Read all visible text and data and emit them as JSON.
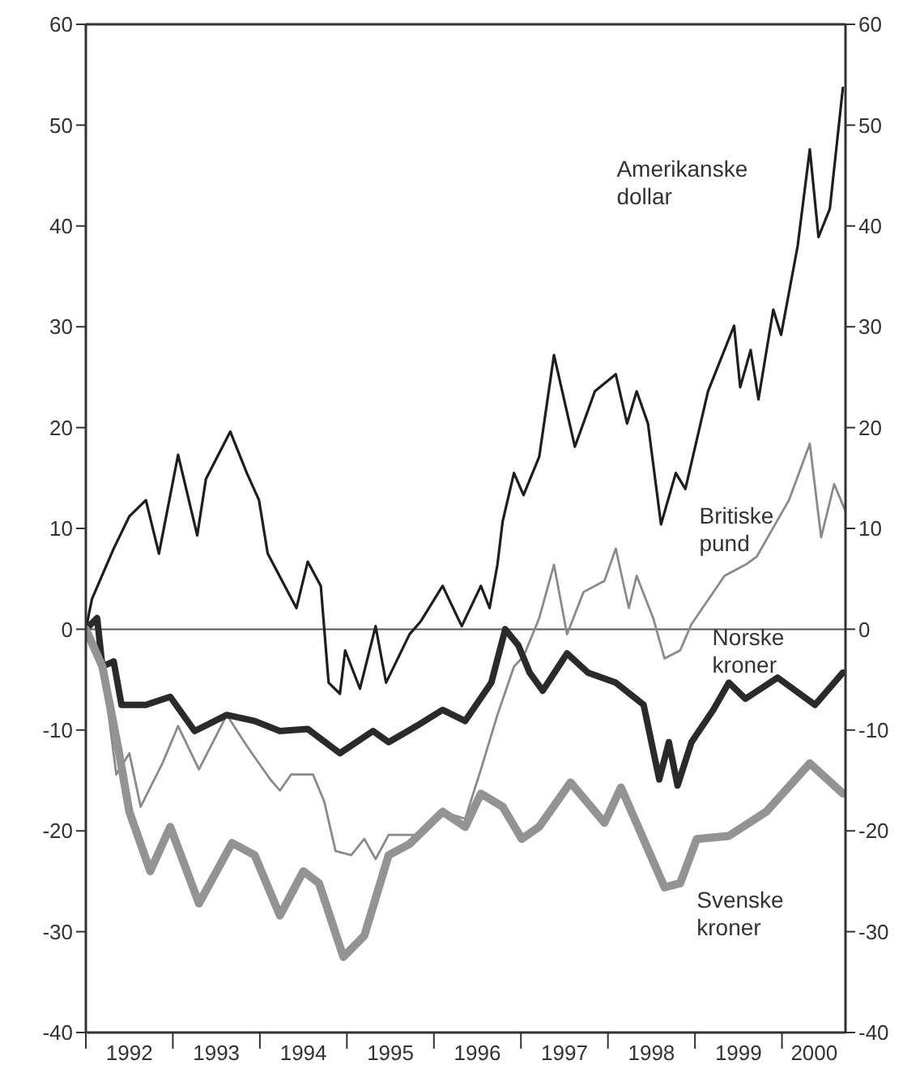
{
  "chart_data": {
    "type": "line",
    "xlim": [
      1992,
      2000.73
    ],
    "ylim": [
      -40,
      60
    ],
    "y2lim": [
      -40,
      60
    ],
    "xticks": [
      {
        "value": 1992,
        "label": null
      },
      {
        "value": 1992.5,
        "label": "1992"
      },
      {
        "value": 1993,
        "label": null
      },
      {
        "value": 1993.5,
        "label": "1993"
      },
      {
        "value": 1994,
        "label": null
      },
      {
        "value": 1994.5,
        "label": "1994"
      },
      {
        "value": 1995,
        "label": null
      },
      {
        "value": 1995.5,
        "label": "1995"
      },
      {
        "value": 1996,
        "label": null
      },
      {
        "value": 1996.5,
        "label": "1996"
      },
      {
        "value": 1997,
        "label": null
      },
      {
        "value": 1997.5,
        "label": "1997"
      },
      {
        "value": 1998,
        "label": null
      },
      {
        "value": 1998.5,
        "label": "1998"
      },
      {
        "value": 1999,
        "label": null
      },
      {
        "value": 1999.5,
        "label": "1999"
      },
      {
        "value": 2000,
        "label": null
      },
      {
        "value": 2000.37,
        "label": "2000"
      }
    ],
    "yticks": [
      -40,
      -30,
      -20,
      -10,
      0,
      10,
      20,
      30,
      40,
      50,
      60
    ],
    "y2ticks": [
      -40,
      -30,
      -20,
      -10,
      0,
      10,
      20,
      30,
      40,
      50,
      60
    ],
    "ref_lines": [
      {
        "axis": "y",
        "value": 0,
        "color": "#555555"
      }
    ],
    "grid": false,
    "legend": false,
    "series": [
      {
        "name": "Amerikanske dollar",
        "color": "#1e1e1e",
        "x": [
          1992,
          1992.07,
          1992.32,
          1992.5,
          1992.69,
          1992.84,
          1993.06,
          1993.28,
          1993.38,
          1993.66,
          1993.85,
          1993.99,
          1994.09,
          1994.42,
          1994.55,
          1994.7,
          1994.79,
          1994.92,
          1994.98,
          1995.15,
          1995.33,
          1995.45,
          1995.72,
          1995.85,
          1996.1,
          1996.32,
          1996.54,
          1996.64,
          1996.73,
          1996.79,
          1996.92,
          1997.03,
          1997.21,
          1997.38,
          1997.62,
          1997.85,
          1998.09,
          1998.22,
          1998.33,
          1998.46,
          1998.61,
          1998.78,
          1998.89,
          1999.15,
          1999.45,
          1999.52,
          1999.64,
          1999.73,
          1999.9,
          1999.99,
          2000.18,
          2000.32,
          2000.42,
          2000.55,
          2000.7
        ],
        "values": [
          0,
          3,
          8,
          11.2,
          12.8,
          7.5,
          17.3,
          9.3,
          14.9,
          19.6,
          15.5,
          12.8,
          7.5,
          2.1,
          6.7,
          4.3,
          -5.3,
          -6.4,
          -2.1,
          -5.9,
          0.3,
          -5.3,
          -0.5,
          0.8,
          4.3,
          0.3,
          4.3,
          2.1,
          6.4,
          10.7,
          15.5,
          13.3,
          17.1,
          27.2,
          18.1,
          23.6,
          25.3,
          20.4,
          23.6,
          20.4,
          10.4,
          15.5,
          13.9,
          23.6,
          30.1,
          24,
          27.7,
          22.8,
          31.7,
          29.2,
          38,
          47.6,
          38.9,
          41.7,
          53.7
        ]
      },
      {
        "name": "Britiske pund",
        "color": "#8a8a8a",
        "x": [
          1992,
          1992.19,
          1992.35,
          1992.5,
          1992.63,
          1992.88,
          1993.06,
          1993.3,
          1993.62,
          1993.86,
          1994.12,
          1994.23,
          1994.36,
          1994.61,
          1994.74,
          1994.87,
          1995.05,
          1995.2,
          1995.33,
          1995.48,
          1995.8,
          1996.1,
          1996.36,
          1996.54,
          1996.73,
          1996.92,
          1997.03,
          1997.21,
          1997.38,
          1997.53,
          1997.72,
          1997.96,
          1998.09,
          1998.24,
          1998.33,
          1998.52,
          1998.65,
          1998.83,
          1998.96,
          1999.34,
          1999.58,
          1999.71,
          2000.08,
          2000.32,
          2000.45,
          2000.6,
          2000.73
        ],
        "values": [
          0,
          -3.7,
          -14.4,
          -12.3,
          -17.6,
          -13.3,
          -9.6,
          -13.9,
          -8.5,
          -11.7,
          -14.9,
          -16,
          -14.4,
          -14.4,
          -17.1,
          -22,
          -22.4,
          -20.8,
          -22.8,
          -20.4,
          -20.4,
          -18.1,
          -18.8,
          -13.9,
          -8.5,
          -3.7,
          -2.7,
          1.1,
          6.4,
          -0.5,
          3.7,
          4.8,
          8,
          2.1,
          5.3,
          1.1,
          -2.9,
          -2.1,
          0.5,
          5.3,
          6.4,
          7.2,
          12.8,
          18.4,
          9.1,
          14.4,
          11.7
        ]
      },
      {
        "name": "Norske kroner",
        "color": "#2a2a2a",
        "x": [
          1992,
          1992.13,
          1992.19,
          1992.32,
          1992.41,
          1992.69,
          1992.97,
          1993.25,
          1993.62,
          1993.94,
          1994.23,
          1994.55,
          1994.92,
          1995.3,
          1995.48,
          1995.8,
          1996.1,
          1996.36,
          1996.66,
          1996.82,
          1996.97,
          1997.1,
          1997.25,
          1997.53,
          1997.77,
          1998.09,
          1998.41,
          1998.59,
          1998.7,
          1998.8,
          1998.96,
          1999.21,
          1999.39,
          1999.58,
          1999.95,
          2000.38,
          2000.7
        ],
        "values": [
          0,
          1.1,
          -3.7,
          -3.2,
          -7.5,
          -7.5,
          -6.7,
          -10.1,
          -8.5,
          -9.1,
          -10.1,
          -9.9,
          -12.3,
          -10.1,
          -11.2,
          -9.6,
          -8,
          -9.1,
          -5.3,
          0,
          -1.6,
          -4.3,
          -6.1,
          -2.4,
          -4.3,
          -5.3,
          -7.5,
          -14.9,
          -11.2,
          -15.5,
          -11.2,
          -8,
          -5.3,
          -6.9,
          -4.8,
          -7.5,
          -4.3
        ]
      },
      {
        "name": "Svenske kroner",
        "color": "#939393",
        "x": [
          1992,
          1992.19,
          1992.37,
          1992.5,
          1992.74,
          1992.97,
          1993.3,
          1993.68,
          1993.94,
          1994.23,
          1994.5,
          1994.68,
          1994.96,
          1995.2,
          1995.48,
          1995.72,
          1996.1,
          1996.36,
          1996.54,
          1996.79,
          1997.01,
          1997.21,
          1997.57,
          1997.96,
          1998.15,
          1998.65,
          1998.83,
          1999.02,
          1999.39,
          1999.82,
          2000.32,
          2000.7
        ],
        "values": [
          0,
          -3.7,
          -11.7,
          -18.1,
          -24,
          -19.6,
          -27.2,
          -21.2,
          -22.4,
          -28.4,
          -24,
          -25.2,
          -32.5,
          -30.4,
          -22.4,
          -21.3,
          -18.1,
          -19.6,
          -16.3,
          -17.6,
          -20.8,
          -19.6,
          -15.2,
          -19.2,
          -15.7,
          -25.6,
          -25.2,
          -20.8,
          -20.5,
          -18.1,
          -13.3,
          -16.3
        ]
      }
    ]
  }
}
